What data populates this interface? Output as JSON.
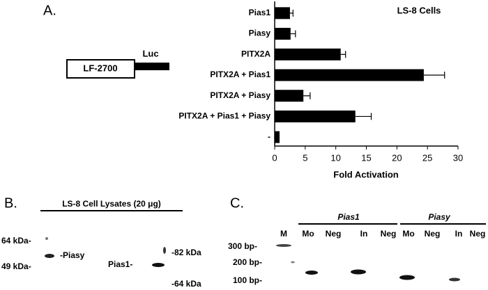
{
  "chart_data": {
    "type": "bar",
    "orientation": "horizontal",
    "panel_label": "A.",
    "annotation": "LS-8 Cells",
    "x_label": "Fold Activation",
    "categories": [
      "Pias1",
      "Piasy",
      "PITX2A",
      "PITX2A + Pias1",
      "PITX2A + Piasy",
      "PITX2A + Pias1 + Piasy",
      "-"
    ],
    "values": [
      2.5,
      2.6,
      10.8,
      24.4,
      4.7,
      13.2,
      0.8
    ],
    "errors": [
      0.5,
      0.8,
      0.8,
      3.4,
      1.1,
      2.6,
      0
    ],
    "color": "#000000",
    "xlim": [
      0,
      30
    ],
    "xticks": [
      0,
      5,
      10,
      15,
      20,
      25,
      30
    ]
  },
  "construct": {
    "promoter": "LF-2700",
    "reporter": "Luc"
  },
  "panel_b": {
    "label": "B.",
    "title": "LS-8 Cell Lysates (20 μg)",
    "left_markers": [
      "64 kDa-",
      "49 kDa-"
    ],
    "band_label_left": "-Piasy",
    "band_label_right": "Pias1-",
    "right_markers": [
      "-82 kDa",
      "-64 kDa"
    ]
  },
  "panel_c": {
    "label": "C.",
    "groups": [
      "Pias1",
      "Piasy"
    ],
    "lanes": [
      "M",
      "Mo",
      "Neg",
      "In",
      "Neg",
      "Mo",
      "Neg",
      "In",
      "Neg"
    ],
    "markers": [
      "300 bp-",
      "200 bp-",
      "100 bp-"
    ]
  }
}
